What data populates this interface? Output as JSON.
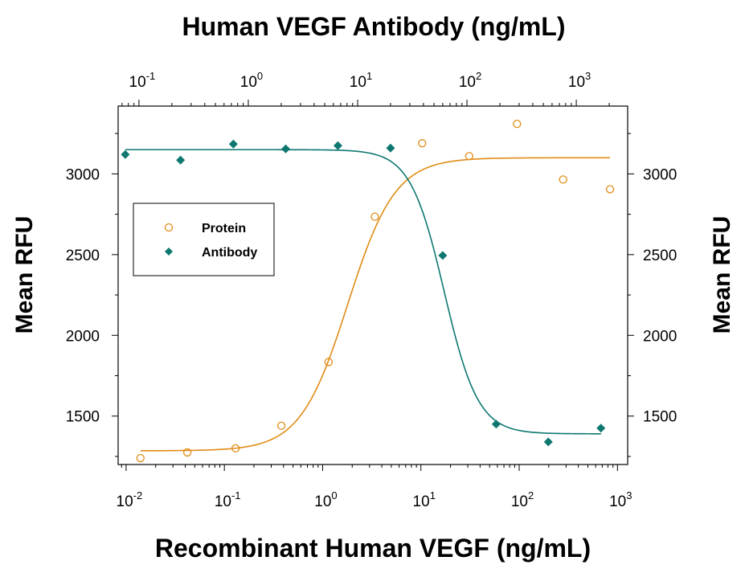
{
  "chart_data": {
    "type": "scatter",
    "title": "Human VEGF Antibody (ng/mL)",
    "xlabel": "Recombinant Human VEGF (ng/mL)",
    "ylabel": "Mean RFU",
    "ylabel_right": "Mean RFU",
    "x_scale": "log",
    "x_bottom_ticks": [
      {
        "value": 0.01,
        "base": "10",
        "exp": "-2"
      },
      {
        "value": 0.1,
        "base": "10",
        "exp": "-1"
      },
      {
        "value": 1,
        "base": "10",
        "exp": "0"
      },
      {
        "value": 10,
        "base": "10",
        "exp": "1"
      },
      {
        "value": 100,
        "base": "10",
        "exp": "2"
      },
      {
        "value": 1000,
        "base": "10",
        "exp": "3"
      }
    ],
    "x_top_ticks": [
      {
        "value": 0.1,
        "base": "10",
        "exp": "-1"
      },
      {
        "value": 1,
        "base": "10",
        "exp": "0"
      },
      {
        "value": 10,
        "base": "10",
        "exp": "1"
      },
      {
        "value": 100,
        "base": "10",
        "exp": "2"
      },
      {
        "value": 1000,
        "base": "10",
        "exp": "3"
      }
    ],
    "x_bottom_range": [
      0.0083,
      1270
    ],
    "x_top_range": [
      0.0645,
      2950
    ],
    "y_ticks": [
      "1500",
      "2000",
      "2500",
      "3000"
    ],
    "ylim": [
      1200,
      3420
    ],
    "legend": {
      "position": "middle-left"
    },
    "series": [
      {
        "name": "Protein",
        "axis": "bottom",
        "marker": "open-circle",
        "color": "#E08C16",
        "x": [
          0.014,
          0.042,
          0.13,
          0.38,
          1.15,
          3.4,
          10.3,
          31,
          95,
          280,
          840
        ],
        "y": [
          1240,
          1275,
          1300,
          1440,
          1835,
          2735,
          3190,
          3110,
          3310,
          2965,
          2905
        ],
        "fit": {
          "bottom": 1285,
          "top": 3100,
          "ec50": 1.8,
          "hill": 1.8
        }
      },
      {
        "name": "Antibody",
        "axis": "top",
        "marker": "filled-diamond",
        "color": "#0E7870",
        "x": [
          0.075,
          0.24,
          0.73,
          2.2,
          6.6,
          20,
          60,
          185,
          555,
          1680
        ],
        "y": [
          3120,
          3085,
          3185,
          3155,
          3175,
          3160,
          2495,
          1450,
          1340,
          1425
        ],
        "fit": {
          "bottom": 1390,
          "top": 3150,
          "ec50": 62,
          "hill": 2.8
        }
      }
    ]
  }
}
